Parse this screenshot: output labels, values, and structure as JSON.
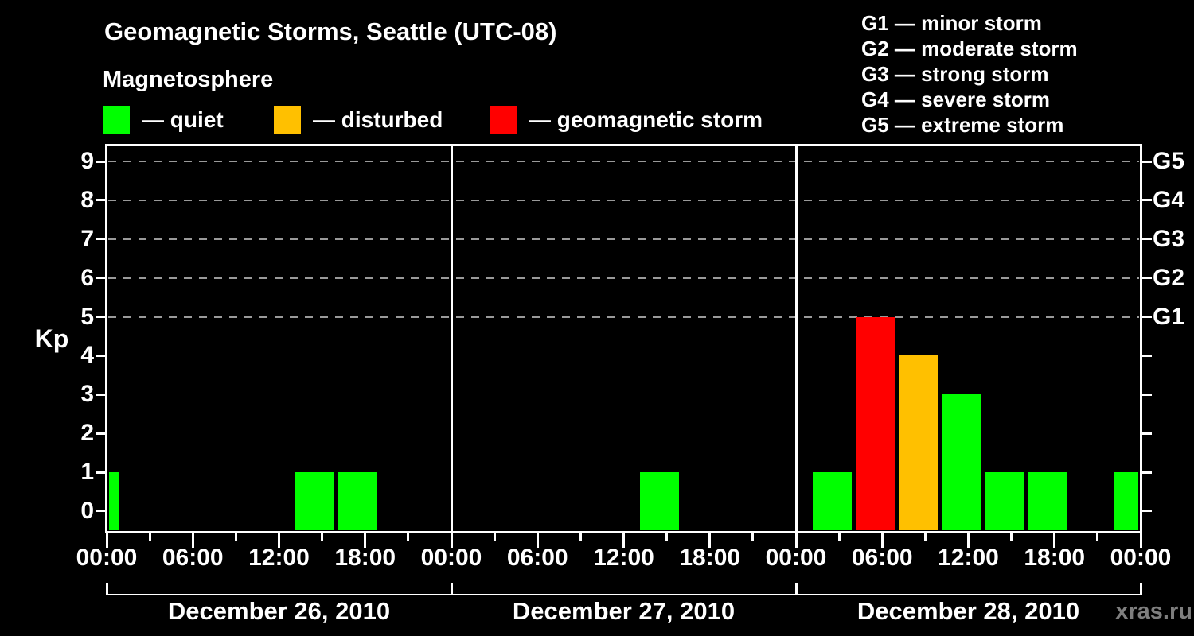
{
  "title": "Geomagnetic Storms, Seattle (UTC-08)",
  "subtitle": "Magnetosphere",
  "activity_legend": [
    {
      "key": "quiet",
      "label": "— quiet",
      "color": "#00ff00"
    },
    {
      "key": "disturbed",
      "label": "— disturbed",
      "color": "#ffc000"
    },
    {
      "key": "storm",
      "label": "— geomagnetic storm",
      "color": "#ff0000"
    }
  ],
  "storm_scale_legend": [
    "G1 — minor storm",
    "G2 — moderate storm",
    "G3 — strong storm",
    "G4 — severe storm",
    "G5 — extreme storm"
  ],
  "watermark": "xras.ru",
  "chart_data": {
    "type": "bar",
    "ylabel": "Kp",
    "ylim": [
      -0.5,
      9.4
    ],
    "y_ticks": [
      0,
      1,
      2,
      3,
      4,
      5,
      6,
      7,
      8,
      9
    ],
    "g_levels": [
      {
        "kp": 5,
        "label": "G1"
      },
      {
        "kp": 6,
        "label": "G2"
      },
      {
        "kp": 7,
        "label": "G3"
      },
      {
        "kp": 8,
        "label": "G4"
      },
      {
        "kp": 9,
        "label": "G5"
      }
    ],
    "x_axis": {
      "hours_per_day": 24,
      "minor_tick_hours": 3,
      "major_tick_hours": 6,
      "major_labels": [
        "00:00",
        "06:00",
        "12:00",
        "18:00"
      ],
      "end_label": "00:00"
    },
    "grid": "dashed horizontal lines at G1–G5 levels",
    "legend_position": "top",
    "days": [
      {
        "date": "December 26, 2010",
        "bars": [
          {
            "start_hour": 0,
            "end_hour": 1,
            "kp": 1,
            "level": "quiet"
          },
          {
            "start_hour": 13,
            "end_hour": 16,
            "kp": 1,
            "level": "quiet"
          },
          {
            "start_hour": 16,
            "end_hour": 19,
            "kp": 1,
            "level": "quiet"
          }
        ]
      },
      {
        "date": "December 27, 2010",
        "bars": [
          {
            "start_hour": 13,
            "end_hour": 16,
            "kp": 1,
            "level": "quiet"
          }
        ]
      },
      {
        "date": "December 28, 2010",
        "bars": [
          {
            "start_hour": 1,
            "end_hour": 4,
            "kp": 1,
            "level": "quiet"
          },
          {
            "start_hour": 4,
            "end_hour": 7,
            "kp": 5,
            "level": "storm"
          },
          {
            "start_hour": 7,
            "end_hour": 10,
            "kp": 4,
            "level": "disturbed"
          },
          {
            "start_hour": 10,
            "end_hour": 13,
            "kp": 3,
            "level": "quiet"
          },
          {
            "start_hour": 13,
            "end_hour": 16,
            "kp": 1,
            "level": "quiet"
          },
          {
            "start_hour": 16,
            "end_hour": 19,
            "kp": 1,
            "level": "quiet"
          },
          {
            "start_hour": 22,
            "end_hour": 24,
            "kp": 1,
            "level": "quiet"
          }
        ]
      }
    ]
  }
}
